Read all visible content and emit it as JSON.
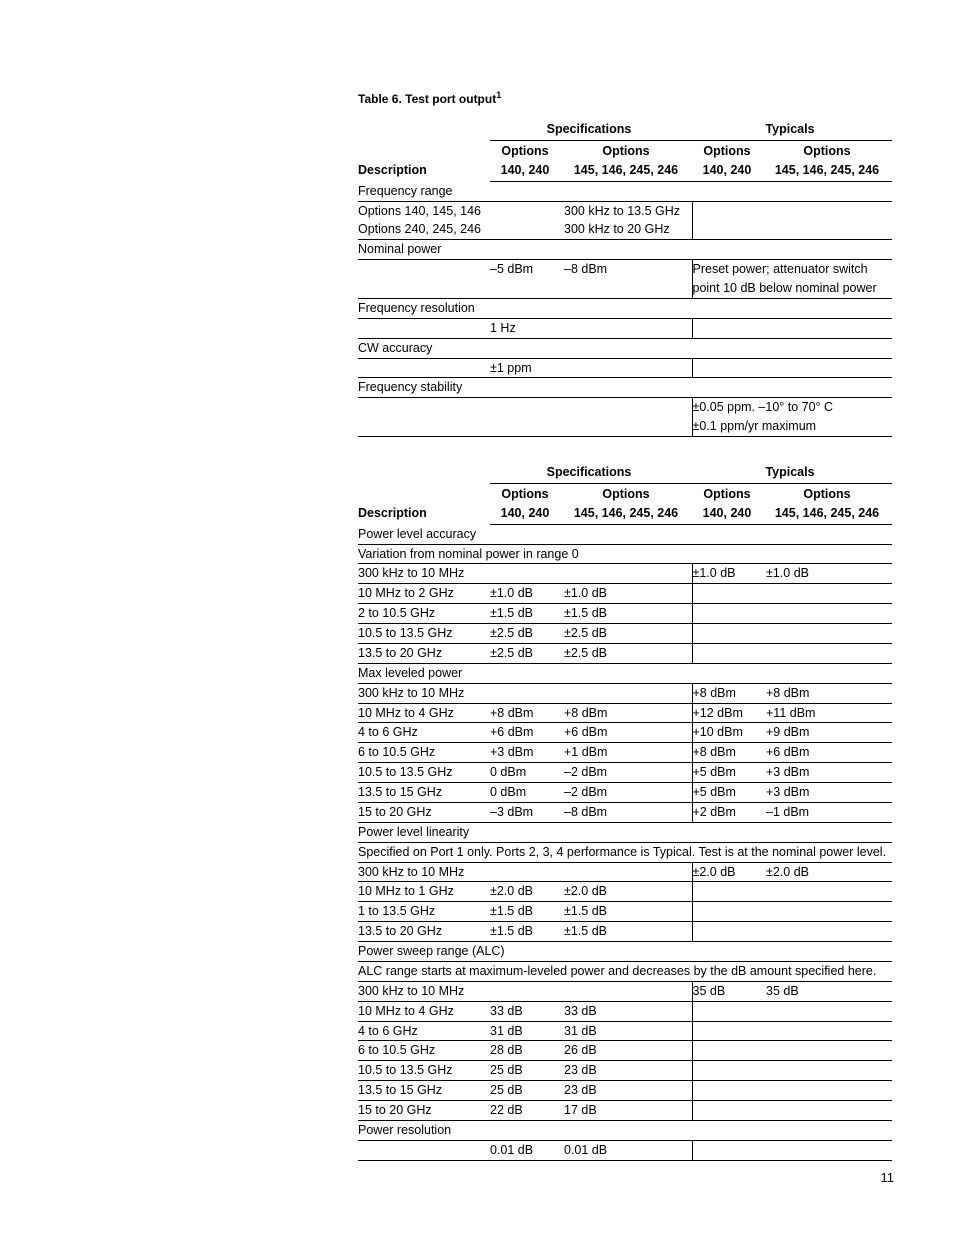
{
  "page_number": "11",
  "table_title_prefix": "Table 6. Test port output",
  "table_title_sup": "1",
  "headers": {
    "description": "Description",
    "specifications": "Specifications",
    "typicals": "Typicals",
    "options": "Options",
    "opt_a": "140, 240",
    "opt_b": "145, 146, 245, 246"
  },
  "t1": {
    "freq_range_label": "Frequency range",
    "freq_range_rows": [
      {
        "opt": "Options 140, 145, 146",
        "val": "300 kHz to 13.5 GHz"
      },
      {
        "opt": "Options 240, 245, 246",
        "val": "300 kHz to 20 GHz"
      }
    ],
    "nominal_power_label": "Nominal power",
    "nominal_power": {
      "s1": "–5 dBm",
      "s2": "–8 dBm",
      "typ_note_l1": "Preset power; attenuator switch",
      "typ_note_l2": "point 10 dB below nominal power"
    },
    "freq_res_label": "Frequency resolution",
    "freq_res_val": "1 Hz",
    "cw_acc_label": "CW accuracy",
    "cw_acc_val": "±1 ppm",
    "freq_stab_label": "Frequency stability",
    "freq_stab_typ_l1": "±0.05 ppm. –10° to 70° C",
    "freq_stab_typ_l2": "±0.1 ppm/yr maximum"
  },
  "t2": {
    "pla_label": "Power level accuracy",
    "pla_note": "Variation from nominal power in range 0",
    "pla_rows": [
      {
        "d": "300 kHz to 10 MHz",
        "s1": "",
        "s2": "",
        "t1": "±1.0 dB",
        "t2": "±1.0 dB"
      },
      {
        "d": "10 MHz to 2 GHz",
        "s1": "±1.0 dB",
        "s2": "±1.0 dB",
        "t1": "",
        "t2": ""
      },
      {
        "d": "2 to 10.5 GHz",
        "s1": "±1.5 dB",
        "s2": "±1.5 dB",
        "t1": "",
        "t2": ""
      },
      {
        "d": "10.5 to 13.5 GHz",
        "s1": "±2.5 dB",
        "s2": "±2.5 dB",
        "t1": "",
        "t2": ""
      },
      {
        "d": "13.5 to 20 GHz",
        "s1": "±2.5 dB",
        "s2": "±2.5 dB",
        "t1": "",
        "t2": ""
      }
    ],
    "mlp_label": "Max leveled power",
    "mlp_rows": [
      {
        "d": "300 kHz to 10 MHz",
        "s1": "",
        "s2": "",
        "t1": "+8 dBm",
        "t2": "+8 dBm"
      },
      {
        "d": "10 MHz to 4 GHz",
        "s1": "+8 dBm",
        "s2": "+8 dBm",
        "t1": "+12 dBm",
        "t2": "+11 dBm"
      },
      {
        "d": "4 to 6 GHz",
        "s1": "+6 dBm",
        "s2": "+6 dBm",
        "t1": "+10 dBm",
        "t2": "+9 dBm"
      },
      {
        "d": "6 to 10.5 GHz",
        "s1": "+3 dBm",
        "s2": "+1 dBm",
        "t1": "+8 dBm",
        "t2": "+6 dBm"
      },
      {
        "d": "10.5 to 13.5 GHz",
        "s1": "0 dBm",
        "s2": "–2 dBm",
        "t1": "+5 dBm",
        "t2": "+3 dBm"
      },
      {
        "d": "13.5 to 15 GHz",
        "s1": "0 dBm",
        "s2": "–2 dBm",
        "t1": "+5 dBm",
        "t2": "+3 dBm"
      },
      {
        "d": "15 to 20 GHz",
        "s1": "–3 dBm",
        "s2": "–8 dBm",
        "t1": "+2 dBm",
        "t2": "–1 dBm"
      }
    ],
    "pll_label": "Power level linearity",
    "pll_note": "Specified on Port 1 only. Ports 2, 3, 4 performance is Typical. Test is at the nominal power level.",
    "pll_rows": [
      {
        "d": "300 kHz to 10 MHz",
        "s1": "",
        "s2": "",
        "t1": "±2.0 dB",
        "t2": "±2.0 dB"
      },
      {
        "d": "10 MHz to 1 GHz",
        "s1": "±2.0 dB",
        "s2": "±2.0 dB",
        "t1": "",
        "t2": ""
      },
      {
        "d": "1 to 13.5 GHz",
        "s1": "±1.5 dB",
        "s2": "±1.5 dB",
        "t1": "",
        "t2": ""
      },
      {
        "d": "13.5 to 20 GHz",
        "s1": "±1.5 dB",
        "s2": "±1.5 dB",
        "t1": "",
        "t2": ""
      }
    ],
    "psr_label": "Power sweep range (ALC)",
    "psr_note": "ALC range starts at maximum-leveled power and decreases by the dB amount specified here.",
    "psr_rows": [
      {
        "d": "300 kHz to 10 MHz",
        "s1": "",
        "s2": "",
        "t1": "35 dB",
        "t2": "35 dB"
      },
      {
        "d": "10 MHz to 4 GHz",
        "s1": "33 dB",
        "s2": "33 dB",
        "t1": "",
        "t2": ""
      },
      {
        "d": "4 to 6 GHz",
        "s1": "31 dB",
        "s2": "31 dB",
        "t1": "",
        "t2": ""
      },
      {
        "d": "6 to 10.5 GHz",
        "s1": "28 dB",
        "s2": "26 dB",
        "t1": "",
        "t2": ""
      },
      {
        "d": "10.5 to 13.5 GHz",
        "s1": "25 dB",
        "s2": "23 dB",
        "t1": "",
        "t2": ""
      },
      {
        "d": "13.5 to 15 GHz",
        "s1": "25 dB",
        "s2": "23 dB",
        "t1": "",
        "t2": ""
      },
      {
        "d": "15 to 20 GHz",
        "s1": "22 dB",
        "s2": "17 dB",
        "t1": "",
        "t2": ""
      }
    ],
    "pres_label": "Power resolution",
    "pres_row": {
      "s1": "0.01 dB",
      "s2": "0.01 dB"
    }
  }
}
